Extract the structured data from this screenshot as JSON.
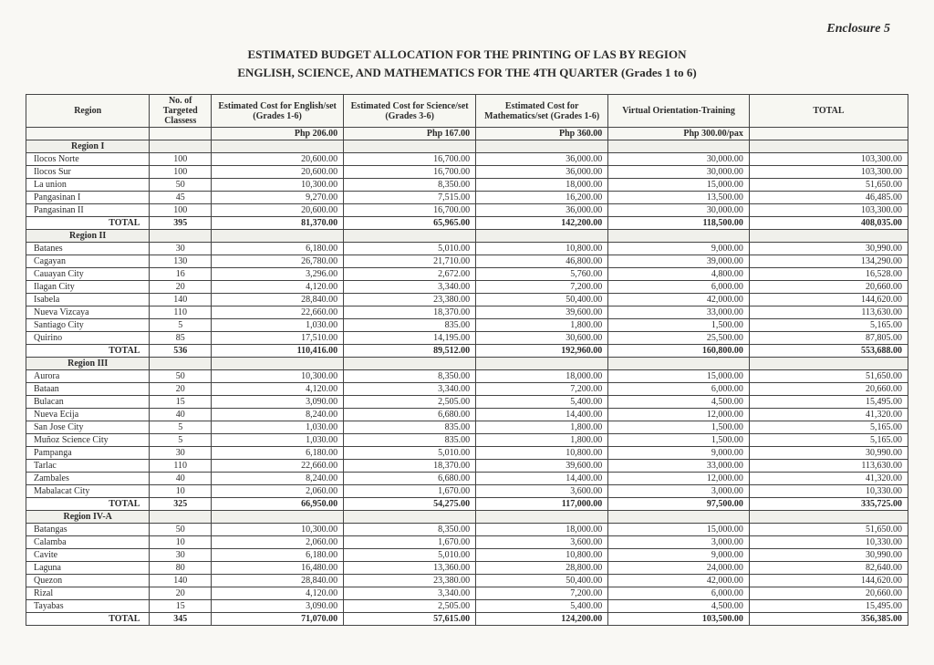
{
  "enclosure": "Enclosure 5",
  "title_line1": "ESTIMATED BUDGET ALLOCATION FOR THE PRINTING OF LAS BY REGION",
  "title_line2": "ENGLISH, SCIENCE, AND MATHEMATICS FOR THE 4TH QUARTER (Grades 1 to 6)",
  "columns": {
    "region": "Region",
    "classes": "No. of Targeted Classess",
    "english": "Estimated Cost for English/set (Grades 1-6)",
    "science": "Estimated Cost for Science/set (Grades 3-6)",
    "math": "Estimated Cost for Mathematics/set (Grades 1-6)",
    "virtual": "Virtual Orientation-Training",
    "total": "TOTAL"
  },
  "unit_prices": {
    "english": "Php 206.00",
    "science": "Php 167.00",
    "math": "Php 360.00",
    "virtual": "Php 300.00/pax"
  },
  "regions": [
    {
      "name": "Region I",
      "rows": [
        {
          "n": "Ilocos Norte",
          "c": "100",
          "e": "20,600.00",
          "s": "16,700.00",
          "m": "36,000.00",
          "v": "30,000.00",
          "t": "103,300.00"
        },
        {
          "n": "Ilocos Sur",
          "c": "100",
          "e": "20,600.00",
          "s": "16,700.00",
          "m": "36,000.00",
          "v": "30,000.00",
          "t": "103,300.00"
        },
        {
          "n": "La union",
          "c": "50",
          "e": "10,300.00",
          "s": "8,350.00",
          "m": "18,000.00",
          "v": "15,000.00",
          "t": "51,650.00"
        },
        {
          "n": "Pangasinan I",
          "c": "45",
          "e": "9,270.00",
          "s": "7,515.00",
          "m": "16,200.00",
          "v": "13,500.00",
          "t": "46,485.00"
        },
        {
          "n": "Pangasinan II",
          "c": "100",
          "e": "20,600.00",
          "s": "16,700.00",
          "m": "36,000.00",
          "v": "30,000.00",
          "t": "103,300.00"
        }
      ],
      "total": {
        "label": "TOTAL",
        "c": "395",
        "e": "81,370.00",
        "s": "65,965.00",
        "m": "142,200.00",
        "v": "118,500.00",
        "t": "408,035.00"
      }
    },
    {
      "name": "Region II",
      "rows": [
        {
          "n": "Batanes",
          "c": "30",
          "e": "6,180.00",
          "s": "5,010.00",
          "m": "10,800.00",
          "v": "9,000.00",
          "t": "30,990.00"
        },
        {
          "n": "Cagayan",
          "c": "130",
          "e": "26,780.00",
          "s": "21,710.00",
          "m": "46,800.00",
          "v": "39,000.00",
          "t": "134,290.00"
        },
        {
          "n": "Cauayan City",
          "c": "16",
          "e": "3,296.00",
          "s": "2,672.00",
          "m": "5,760.00",
          "v": "4,800.00",
          "t": "16,528.00"
        },
        {
          "n": "Ilagan City",
          "c": "20",
          "e": "4,120.00",
          "s": "3,340.00",
          "m": "7,200.00",
          "v": "6,000.00",
          "t": "20,660.00"
        },
        {
          "n": "Isabela",
          "c": "140",
          "e": "28,840.00",
          "s": "23,380.00",
          "m": "50,400.00",
          "v": "42,000.00",
          "t": "144,620.00"
        },
        {
          "n": "Nueva Vizcaya",
          "c": "110",
          "e": "22,660.00",
          "s": "18,370.00",
          "m": "39,600.00",
          "v": "33,000.00",
          "t": "113,630.00"
        },
        {
          "n": "Santiago City",
          "c": "5",
          "e": "1,030.00",
          "s": "835.00",
          "m": "1,800.00",
          "v": "1,500.00",
          "t": "5,165.00"
        },
        {
          "n": "Quirino",
          "c": "85",
          "e": "17,510.00",
          "s": "14,195.00",
          "m": "30,600.00",
          "v": "25,500.00",
          "t": "87,805.00"
        }
      ],
      "total": {
        "label": "TOTAL",
        "c": "536",
        "e": "110,416.00",
        "s": "89,512.00",
        "m": "192,960.00",
        "v": "160,800.00",
        "t": "553,688.00"
      }
    },
    {
      "name": "Region III",
      "rows": [
        {
          "n": "Aurora",
          "c": "50",
          "e": "10,300.00",
          "s": "8,350.00",
          "m": "18,000.00",
          "v": "15,000.00",
          "t": "51,650.00"
        },
        {
          "n": "Bataan",
          "c": "20",
          "e": "4,120.00",
          "s": "3,340.00",
          "m": "7,200.00",
          "v": "6,000.00",
          "t": "20,660.00"
        },
        {
          "n": "Bulacan",
          "c": "15",
          "e": "3,090.00",
          "s": "2,505.00",
          "m": "5,400.00",
          "v": "4,500.00",
          "t": "15,495.00"
        },
        {
          "n": "Nueva Ecija",
          "c": "40",
          "e": "8,240.00",
          "s": "6,680.00",
          "m": "14,400.00",
          "v": "12,000.00",
          "t": "41,320.00"
        },
        {
          "n": "San Jose City",
          "c": "5",
          "e": "1,030.00",
          "s": "835.00",
          "m": "1,800.00",
          "v": "1,500.00",
          "t": "5,165.00"
        },
        {
          "n": "Muñoz Science City",
          "c": "5",
          "e": "1,030.00",
          "s": "835.00",
          "m": "1,800.00",
          "v": "1,500.00",
          "t": "5,165.00"
        },
        {
          "n": "Pampanga",
          "c": "30",
          "e": "6,180.00",
          "s": "5,010.00",
          "m": "10,800.00",
          "v": "9,000.00",
          "t": "30,990.00"
        },
        {
          "n": "Tarlac",
          "c": "110",
          "e": "22,660.00",
          "s": "18,370.00",
          "m": "39,600.00",
          "v": "33,000.00",
          "t": "113,630.00"
        },
        {
          "n": "Zambales",
          "c": "40",
          "e": "8,240.00",
          "s": "6,680.00",
          "m": "14,400.00",
          "v": "12,000.00",
          "t": "41,320.00"
        },
        {
          "n": "Mabalacat City",
          "c": "10",
          "e": "2,060.00",
          "s": "1,670.00",
          "m": "3,600.00",
          "v": "3,000.00",
          "t": "10,330.00"
        }
      ],
      "total": {
        "label": "TOTAL",
        "c": "325",
        "e": "66,950.00",
        "s": "54,275.00",
        "m": "117,000.00",
        "v": "97,500.00",
        "t": "335,725.00"
      }
    },
    {
      "name": "Region IV-A",
      "rows": [
        {
          "n": "Batangas",
          "c": "50",
          "e": "10,300.00",
          "s": "8,350.00",
          "m": "18,000.00",
          "v": "15,000.00",
          "t": "51,650.00"
        },
        {
          "n": "Calamba",
          "c": "10",
          "e": "2,060.00",
          "s": "1,670.00",
          "m": "3,600.00",
          "v": "3,000.00",
          "t": "10,330.00"
        },
        {
          "n": "Cavite",
          "c": "30",
          "e": "6,180.00",
          "s": "5,010.00",
          "m": "10,800.00",
          "v": "9,000.00",
          "t": "30,990.00"
        },
        {
          "n": "Laguna",
          "c": "80",
          "e": "16,480.00",
          "s": "13,360.00",
          "m": "28,800.00",
          "v": "24,000.00",
          "t": "82,640.00"
        },
        {
          "n": "Quezon",
          "c": "140",
          "e": "28,840.00",
          "s": "23,380.00",
          "m": "50,400.00",
          "v": "42,000.00",
          "t": "144,620.00"
        },
        {
          "n": "Rizal",
          "c": "20",
          "e": "4,120.00",
          "s": "3,340.00",
          "m": "7,200.00",
          "v": "6,000.00",
          "t": "20,660.00"
        },
        {
          "n": "Tayabas",
          "c": "15",
          "e": "3,090.00",
          "s": "2,505.00",
          "m": "5,400.00",
          "v": "4,500.00",
          "t": "15,495.00"
        }
      ],
      "total": {
        "label": "TOTAL",
        "c": "345",
        "e": "71,070.00",
        "s": "57,615.00",
        "m": "124,200.00",
        "v": "103,500.00",
        "t": "356,385.00"
      }
    }
  ]
}
